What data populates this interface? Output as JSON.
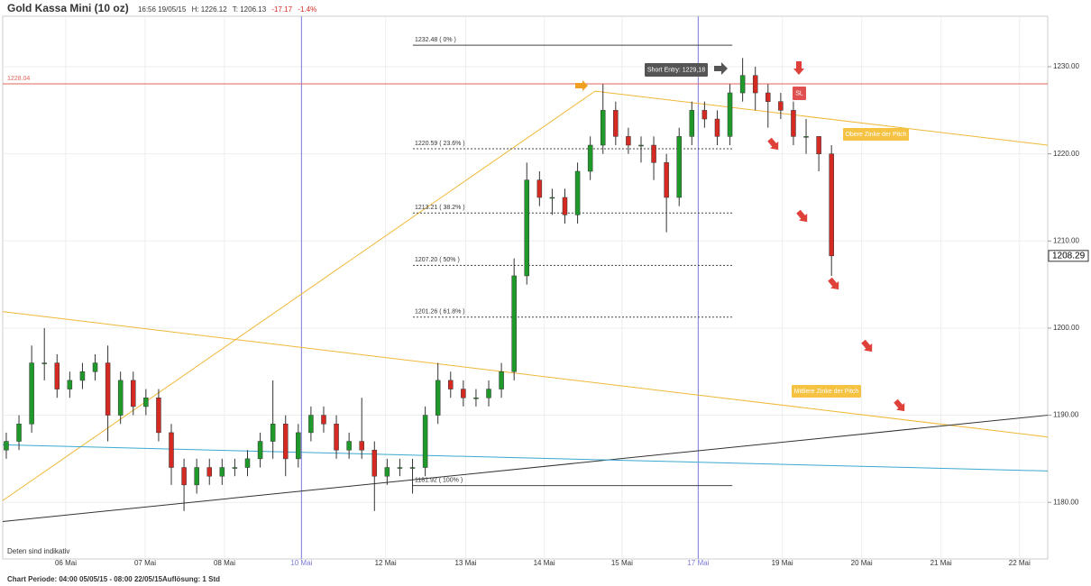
{
  "chart_data": {
    "type": "candlestick",
    "title": "Gold Kassa Mini (10 oz)",
    "time": "16:56 19/05/15",
    "high_label": "H: 1226.12",
    "low_label": "T: 1206.13",
    "change": "-17.17",
    "change_pct": "-1.4%",
    "note": "Deten sind indikativ",
    "period": "Chart Periode: 04:00 05/05/15 - 08:00 22/05/15",
    "resolution": "Auflösung: 1 Std",
    "up_color": "#1f9a2a",
    "down_color": "#d42a22",
    "grid": true,
    "xlim": [
      0.205,
      13.375
    ],
    "ylim": [
      1173.5,
      1235.8
    ],
    "yticks": [
      {
        "value": 1180,
        "label": "1180.00"
      },
      {
        "value": 1190,
        "label": "1190.00"
      },
      {
        "value": 1200,
        "label": "1200.00"
      },
      {
        "value": 1210,
        "label": "1210.00"
      },
      {
        "value": 1220,
        "label": "1220.00"
      },
      {
        "value": 1230,
        "label": "1230.00"
      }
    ],
    "xticks": [
      {
        "value": 1,
        "label": "06 Mai"
      },
      {
        "value": 2,
        "label": "07 Mai"
      },
      {
        "value": 3,
        "label": "08 Mai"
      },
      {
        "value": 3.97,
        "label": "10 Mai"
      },
      {
        "value": 5.03,
        "label": "12 Mai"
      },
      {
        "value": 6.04,
        "label": "13 Mai"
      },
      {
        "value": 7.03,
        "label": "14 Mai"
      },
      {
        "value": 8.01,
        "label": "15 Mai"
      },
      {
        "value": 8.97,
        "label": "17 Mai"
      },
      {
        "value": 10.03,
        "label": "19 Mai"
      },
      {
        "value": 11.03,
        "label": "20 Mai"
      },
      {
        "value": 12.03,
        "label": "21 Mai"
      },
      {
        "value": 13.02,
        "label": "22 Mai"
      }
    ],
    "separator_ticks": [
      3,
      8
    ],
    "separator_color": "#7a7ad8",
    "x": [
      0.25,
      0.41,
      0.57,
      0.73,
      0.89,
      1.05,
      1.21,
      1.37,
      1.53,
      1.69,
      1.85,
      2.01,
      2.17,
      2.33,
      2.49,
      2.65,
      2.81,
      2.97,
      3.13,
      3.29,
      3.45,
      3.61,
      3.77,
      3.93,
      4.09,
      4.25,
      4.41,
      4.57,
      4.73,
      4.89,
      5.05,
      5.21,
      5.37,
      5.53,
      5.69,
      5.85,
      6.01,
      6.17,
      6.33,
      6.49,
      6.65,
      6.81,
      6.97,
      7.13,
      7.29,
      7.45,
      7.61,
      7.77,
      7.93,
      8.09,
      8.25,
      8.41,
      8.57,
      8.73,
      8.89,
      9.05,
      9.21,
      9.37,
      9.53,
      9.69,
      9.85,
      10.01,
      10.17,
      10.33,
      10.49,
      10.65
    ],
    "open": [
      1186,
      1187,
      1189,
      1196,
      1196,
      1193,
      1194,
      1195,
      1196,
      1190,
      1194,
      1191,
      1192,
      1188,
      1184,
      1182,
      1184,
      1183,
      1184,
      1184,
      1185,
      1187,
      1189,
      1185,
      1188,
      1190,
      1189,
      1186,
      1187,
      1186,
      1183,
      1184,
      1184,
      1184,
      1190,
      1194,
      1193,
      1192,
      1192,
      1193,
      1195,
      1206,
      1217,
      1215,
      1215,
      1213,
      1218,
      1221,
      1225,
      1222,
      1221,
      1221,
      1219,
      1215,
      1222,
      1225,
      1224,
      1222,
      1227,
      1229,
      1227,
      1226,
      1225,
      1222,
      1222,
      1220
    ],
    "high": [
      1188,
      1190,
      1198,
      1200,
      1197,
      1195,
      1196,
      1197,
      1198,
      1195,
      1195,
      1193,
      1193,
      1189,
      1185,
      1185,
      1185,
      1185,
      1185,
      1186,
      1188,
      1194,
      1190,
      1189,
      1191,
      1191,
      1190,
      1188,
      1192,
      1187,
      1185,
      1185,
      1185,
      1191,
      1196,
      1195,
      1194,
      1193,
      1194,
      1196,
      1208,
      1219,
      1218,
      1216,
      1216,
      1219,
      1222,
      1228,
      1226,
      1223,
      1222,
      1222,
      1220,
      1223,
      1226,
      1226,
      1225,
      1228,
      1231,
      1230,
      1228,
      1227,
      1226,
      1224,
      1222,
      1221
    ],
    "low": [
      1185,
      1186,
      1188,
      1194,
      1192,
      1192,
      1193,
      1194,
      1187,
      1189,
      1190,
      1190,
      1187,
      1182,
      1179,
      1181,
      1182,
      1182,
      1183,
      1183,
      1184,
      1185,
      1183,
      1184,
      1187,
      1188,
      1185,
      1185,
      1185,
      1179,
      1182,
      1183,
      1181,
      1183,
      1189,
      1192,
      1191,
      1191,
      1191,
      1192,
      1194,
      1205,
      1214,
      1213,
      1212,
      1212,
      1217,
      1220,
      1221,
      1220,
      1219,
      1217,
      1211,
      1214,
      1221,
      1223,
      1221,
      1221,
      1226,
      1225,
      1223,
      1224,
      1221,
      1220,
      1218,
      1206
    ],
    "close": [
      1187,
      1189,
      1196,
      1196,
      1193,
      1194,
      1195,
      1196,
      1190,
      1194,
      1191,
      1192,
      1188,
      1184,
      1182,
      1184,
      1183,
      1184,
      1184,
      1185,
      1187,
      1189,
      1185,
      1188,
      1190,
      1189,
      1186,
      1187,
      1186,
      1183,
      1184,
      1184,
      1184,
      1190,
      1194,
      1193,
      1192,
      1192,
      1193,
      1195,
      1206,
      1217,
      1215,
      1215,
      1213,
      1218,
      1221,
      1225,
      1222,
      1221,
      1221,
      1219,
      1215,
      1222,
      1225,
      1224,
      1222,
      1227,
      1229,
      1227,
      1226,
      1225,
      1222,
      1222,
      1220,
      1208.29
    ],
    "last_price": 1208.29,
    "ref_line": {
      "value": 1228.04,
      "color": "#e0645a"
    },
    "fib": {
      "x": [
        5.375,
        9.4
      ],
      "levels": [
        {
          "value": 1232.48,
          "label": "1232.48 ( 0% )"
        },
        {
          "value": 1220.59,
          "label": "1220.59 ( 23.6% )"
        },
        {
          "value": 1213.21,
          "label": "1213.21 ( 38.2% )"
        },
        {
          "value": 1207.2,
          "label": "1207.20 ( 50% )"
        },
        {
          "value": 1201.26,
          "label": "1201.26 ( 61.8% )"
        },
        {
          "value": 1181.92,
          "label": "1181.92 ( 100% )"
        }
      ]
    },
    "trend_lines": [
      {
        "color": "#f0b838",
        "x": [
          0.205,
          7.67
        ],
        "y": [
          1180.2,
          1227.2
        ]
      },
      {
        "color": "#f0b838",
        "x": [
          7.67,
          13.375
        ],
        "y": [
          1227.2,
          1221
        ]
      },
      {
        "color": "#f0b838",
        "x": [
          0.205,
          13.375
        ],
        "y": [
          1201.9,
          1187.5
        ]
      },
      {
        "color": "#333333",
        "x": [
          0.205,
          13.375
        ],
        "y": [
          1177.8,
          1190
        ]
      },
      {
        "color": "#3aa8d0",
        "x": [
          0.205,
          13.375
        ],
        "y": [
          1186.6,
          1183.6
        ]
      }
    ],
    "annotations": [
      {
        "text": "Short Entry: 1229,18",
        "color": "#555555",
        "text_color": "#ffffff"
      },
      {
        "text": "SL",
        "color": "#e05050",
        "text_color": "#ffffff"
      },
      {
        "text": "Obere Zinke der Pitch",
        "color": "#f5c242",
        "text_color": "#ffffff"
      },
      {
        "text": "Mittlere Zinke der Pitch",
        "color": "#f5c242",
        "text_color": "#ffffff"
      }
    ]
  }
}
